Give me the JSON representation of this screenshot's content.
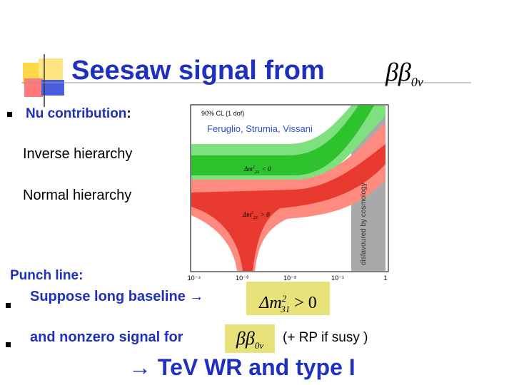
{
  "header": {
    "title": "Seesaw signal from",
    "title_formula": {
      "base": "ββ",
      "sub": "0ν"
    }
  },
  "bullets": {
    "nu_contribution": "Nu contribution",
    "colon": ":",
    "inverse": "Inverse hierarchy",
    "normal": "Normal hierarchy"
  },
  "plot": {
    "cl": "90% CL (1 dof)",
    "authors": "Feruglio, Strumia, Vissani",
    "inverse_label": {
      "base": "Δm",
      "sup": "2",
      "sub": "23",
      "rel": "< 0"
    },
    "normal_label": {
      "base": "Δm",
      "sup": "2",
      "sub": "23",
      "rel": "> 0"
    },
    "cosmology": "disfavoured by cosmology",
    "xticks": [
      "10⁻⁴",
      "10⁻³",
      "10⁻²",
      "10⁻¹",
      "1"
    ]
  },
  "punch": {
    "heading": "Punch line:",
    "line1": "Suppose long baseline →",
    "line1_formula": {
      "base": "Δm",
      "sup": "2",
      "sub": "31",
      "rel": "> 0"
    },
    "line2": "and nonzero signal for",
    "line2_formula": {
      "base": "ββ",
      "sub": "0ν"
    },
    "line2_note": "(+ RP if susy )",
    "conclusion": "→ TeV WR  and type I"
  }
}
